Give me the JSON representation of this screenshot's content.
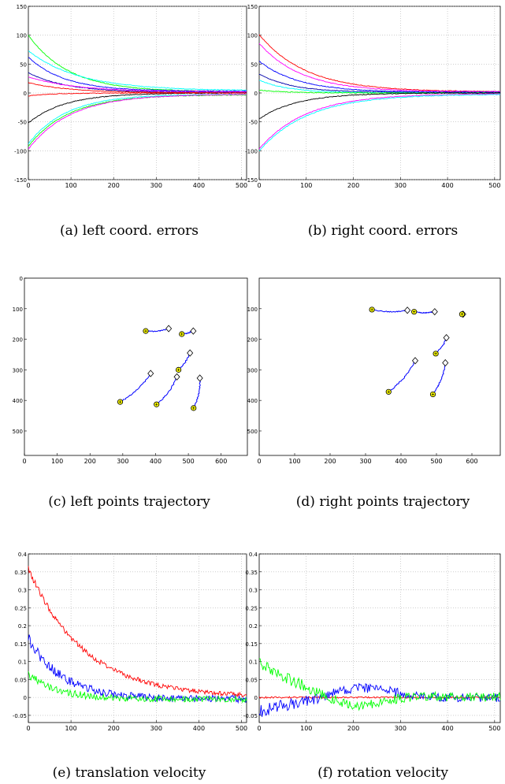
{
  "colors": {
    "red": "#ff0000",
    "blue": "#0000ff",
    "green": "#00ff00",
    "cyan": "#00ffff",
    "magenta": "#ff00ff",
    "black": "#000000",
    "darkblue": "#0000aa",
    "marker_circle": "#ffff00",
    "grid": "#b0b0b0"
  },
  "captions": [
    "(a) left coord. errors",
    "(b) right coord. errors",
    "(c) left points trajectory",
    "(d) right points trajectory",
    "(e) translation velocity",
    "(f) rotation velocity"
  ],
  "chart_data": [
    {
      "id": "a",
      "type": "line",
      "grid": true,
      "xlim": [
        0,
        512
      ],
      "ylim": [
        -150,
        150
      ],
      "xticks": [
        0,
        100,
        200,
        300,
        400,
        500
      ],
      "yticks": [
        -150,
        -100,
        -50,
        0,
        50,
        100,
        150
      ],
      "series_style": "exponential decay toward ~2 with time constant ~100",
      "series": [
        {
          "color": "green",
          "start": 100,
          "end": 2,
          "tau": 95
        },
        {
          "color": "cyan",
          "start": 73,
          "end": 4,
          "tau": 120
        },
        {
          "color": "blue",
          "start": 62,
          "end": 3,
          "tau": 85
        },
        {
          "color": "darkblue",
          "start": 35,
          "end": 1,
          "tau": 90
        },
        {
          "color": "magenta",
          "start": 28,
          "end": 2,
          "tau": 110
        },
        {
          "color": "red",
          "start": 18,
          "end": 0,
          "tau": 100
        },
        {
          "color": "black",
          "start": -52,
          "end": 0,
          "tau": 85
        },
        {
          "color": "cyan",
          "start": -88,
          "end": -2,
          "tau": 90
        },
        {
          "color": "green",
          "start": -92,
          "end": -3,
          "tau": 95
        },
        {
          "color": "magenta",
          "start": -97,
          "end": -2,
          "tau": 100
        },
        {
          "color": "red",
          "start": -5,
          "end": 0,
          "tau": 60
        }
      ]
    },
    {
      "id": "b",
      "type": "line",
      "grid": true,
      "xlim": [
        0,
        512
      ],
      "ylim": [
        -150,
        150
      ],
      "xticks": [
        0,
        100,
        200,
        300,
        400,
        500
      ],
      "yticks": [
        -150,
        -100,
        -50,
        0,
        50,
        100,
        150
      ],
      "series": [
        {
          "color": "red",
          "start": 101,
          "end": 2,
          "tau": 100
        },
        {
          "color": "magenta",
          "start": 86,
          "end": 2,
          "tau": 90
        },
        {
          "color": "blue",
          "start": 55,
          "end": 1,
          "tau": 85
        },
        {
          "color": "darkblue",
          "start": 33,
          "end": 1,
          "tau": 70
        },
        {
          "color": "cyan",
          "start": 22,
          "end": 0,
          "tau": 65
        },
        {
          "color": "green",
          "start": 5,
          "end": 0,
          "tau": 60
        },
        {
          "color": "black",
          "start": -45,
          "end": 0,
          "tau": 80
        },
        {
          "color": "magenta",
          "start": -97,
          "end": -1,
          "tau": 100
        },
        {
          "color": "cyan",
          "start": -100,
          "end": -2,
          "tau": 105
        }
      ]
    },
    {
      "id": "c",
      "type": "scatter",
      "grid": false,
      "yreversed": true,
      "xlim": [
        0,
        680
      ],
      "ylim": [
        0,
        580
      ],
      "xticks": [
        0,
        100,
        200,
        300,
        400,
        500,
        600
      ],
      "yticks": [
        0,
        100,
        200,
        300,
        400,
        500
      ],
      "trajectories": [
        {
          "start": [
            440,
            165
          ],
          "end": [
            370,
            173
          ]
        },
        {
          "start": [
            515,
            173
          ],
          "end": [
            480,
            183
          ]
        },
        {
          "start": [
            505,
            245
          ],
          "end": [
            470,
            300
          ]
        },
        {
          "start": [
            385,
            312
          ],
          "end": [
            292,
            405
          ]
        },
        {
          "start": [
            465,
            323
          ],
          "end": [
            403,
            413
          ]
        },
        {
          "start": [
            535,
            327
          ],
          "end": [
            516,
            425
          ]
        }
      ]
    },
    {
      "id": "d",
      "type": "scatter",
      "grid": false,
      "yreversed": true,
      "xlim": [
        0,
        680
      ],
      "ylim": [
        0,
        580
      ],
      "xticks": [
        0,
        100,
        200,
        300,
        400,
        500,
        600
      ],
      "yticks": [
        100,
        200,
        300,
        400,
        500
      ],
      "trajectories": [
        {
          "start": [
            418,
            105
          ],
          "end": [
            318,
            103
          ]
        },
        {
          "start": [
            495,
            110
          ],
          "end": [
            437,
            110
          ]
        },
        {
          "start": [
            575,
            118
          ],
          "end": [
            572,
            118
          ]
        },
        {
          "start": [
            528,
            195
          ],
          "end": [
            498,
            247
          ]
        },
        {
          "start": [
            440,
            270
          ],
          "end": [
            365,
            372
          ]
        },
        {
          "start": [
            525,
            277
          ],
          "end": [
            490,
            380
          ]
        }
      ]
    },
    {
      "id": "e",
      "type": "line",
      "grid": true,
      "xlim": [
        0,
        512
      ],
      "ylim": [
        -0.07,
        0.4
      ],
      "xticks": [
        0,
        100,
        200,
        300,
        400,
        500
      ],
      "yticks": [
        -0.05,
        0,
        0.05,
        0.1,
        0.15,
        0.2,
        0.25,
        0.3,
        0.35,
        0.4
      ],
      "series": [
        {
          "color": "red",
          "start": 0.36,
          "end": 0.0,
          "tau": 130,
          "noise": 0.006
        },
        {
          "color": "blue",
          "start": 0.165,
          "end": -0.005,
          "tau": 80,
          "noise": 0.01
        },
        {
          "color": "green",
          "start": 0.065,
          "end": -0.005,
          "tau": 70,
          "noise": 0.008
        }
      ]
    },
    {
      "id": "f",
      "type": "line",
      "grid": true,
      "xlim": [
        0,
        512
      ],
      "ylim": [
        -0.07,
        0.4
      ],
      "xticks": [
        0,
        100,
        200,
        300,
        400,
        500
      ],
      "yticks": [
        -0.05,
        0,
        0.05,
        0.1,
        0.15,
        0.2,
        0.25,
        0.3,
        0.35,
        0.4
      ],
      "series": [
        {
          "color": "red",
          "start": 0.0,
          "end": 0.0,
          "tau": 50,
          "noise": 0.002
        },
        {
          "color": "blue",
          "start": -0.04,
          "end": 0.0,
          "tau": 100,
          "noise": 0.012,
          "bump": 0.03
        },
        {
          "color": "green",
          "start": 0.1,
          "end": 0.0,
          "tau": 100,
          "noise": 0.012,
          "dip": -0.035
        }
      ]
    }
  ]
}
